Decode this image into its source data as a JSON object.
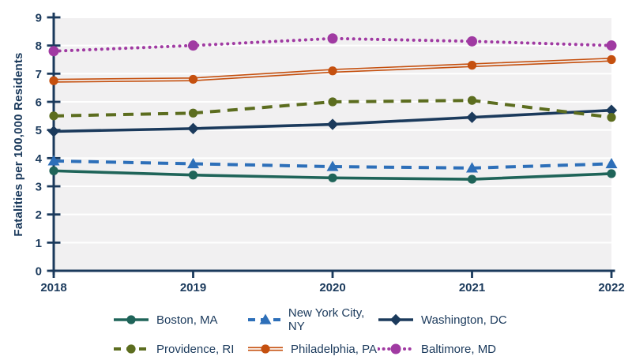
{
  "chart_data": {
    "type": "line",
    "title": "",
    "xlabel": "",
    "ylabel": "Fatalities per 100,000 Residents",
    "x": [
      2018,
      2019,
      2020,
      2021,
      2022
    ],
    "x_labels": [
      "2018",
      "2019",
      "2020",
      "2021",
      "2022"
    ],
    "ylim": [
      0,
      9
    ],
    "ytick_labels": [
      "0",
      "1",
      "2",
      "3",
      "4",
      "5",
      "6",
      "7",
      "8",
      "9"
    ],
    "grid": "horizontal-white-on-gray",
    "legend_position": "bottom",
    "plot_bg": "#F1F0F1",
    "axis_color": "#1B3A5C",
    "series": [
      {
        "name": "Boston, MA",
        "color": "#1F6459",
        "style": "solid",
        "marker": "circle",
        "values": [
          3.55,
          3.4,
          3.3,
          3.25,
          3.45
        ]
      },
      {
        "name": "New York City, NY",
        "color": "#2D6FB9",
        "style": "dashed",
        "marker": "triangle",
        "values": [
          3.9,
          3.8,
          3.7,
          3.65,
          3.8
        ]
      },
      {
        "name": "Washington, DC",
        "color": "#1B3A5C",
        "style": "solid",
        "marker": "diamond",
        "values": [
          4.95,
          5.05,
          5.2,
          5.45,
          5.7
        ]
      },
      {
        "name": "Providence, RI",
        "color": "#5C6D1F",
        "style": "dashed",
        "marker": "circle",
        "values": [
          5.5,
          5.6,
          6.0,
          6.05,
          5.45
        ]
      },
      {
        "name": "Philadelphia, PA",
        "color": "#C5500F",
        "style": "double",
        "marker": "circle",
        "values": [
          6.75,
          6.8,
          7.1,
          7.3,
          7.5
        ]
      },
      {
        "name": "Baltimore, MD",
        "color": "#A03AA2",
        "style": "dotted",
        "marker": "circle",
        "values": [
          7.8,
          8.0,
          8.25,
          8.15,
          8.0
        ]
      }
    ]
  }
}
